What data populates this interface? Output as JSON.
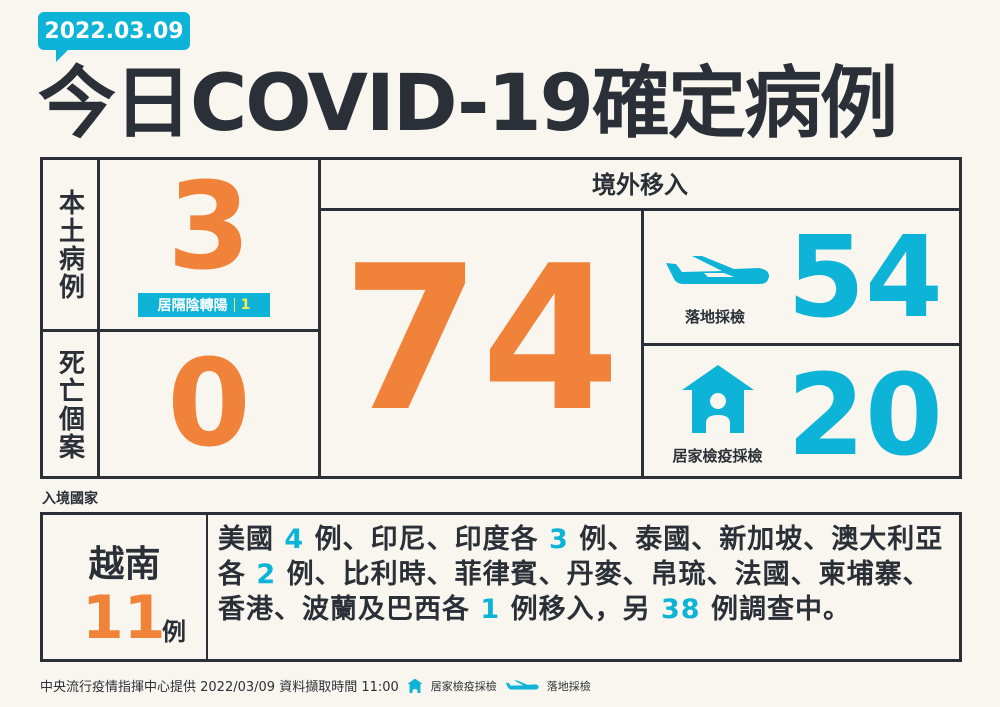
{
  "date": "2022.03.09",
  "title": "今日COVID-19確定病例",
  "domestic": {
    "label": "本土病例",
    "count": "3",
    "turn_label": "居隔陰轉陽",
    "turn_count": "1"
  },
  "deaths": {
    "label": "死亡個案",
    "count": "0"
  },
  "imported": {
    "header": "境外移入",
    "total": "74",
    "landing": {
      "label": "落地採檢",
      "count": "54",
      "icon": "airplane-icon"
    },
    "home": {
      "label": "居家檢疫採檢",
      "count": "20",
      "icon": "house-icon"
    }
  },
  "countries": {
    "section_label": "入境國家",
    "top_country": "越南",
    "top_count": "11",
    "top_unit": "例",
    "detail_segments": [
      {
        "t": "美國 "
      },
      {
        "t": "4",
        "c": 1
      },
      {
        "t": " 例、印尼、印度各 "
      },
      {
        "t": "3",
        "c": 1
      },
      {
        "t": " 例、泰國、新加坡、澳大利亞各 "
      },
      {
        "t": "2",
        "c": 1
      },
      {
        "t": " 例、比利時、菲律賓、丹麥、帛琉、法國、柬埔寨、香港、波蘭及巴西各 "
      },
      {
        "t": "1",
        "c": 1
      },
      {
        "t": " 例移入，另 "
      },
      {
        "t": "38",
        "c": 1
      },
      {
        "t": " 例調查中。"
      }
    ]
  },
  "footer": {
    "source": "中央流行疫情指揮中心提供 2022/03/09 資料擷取時間 11:00",
    "legend_home": "居家檢疫採檢",
    "legend_landing": "落地採檢"
  },
  "colors": {
    "orange": "#f0823a",
    "cyan": "#0db4d8",
    "dark": "#2b3038",
    "background": "#f8f6ee"
  }
}
